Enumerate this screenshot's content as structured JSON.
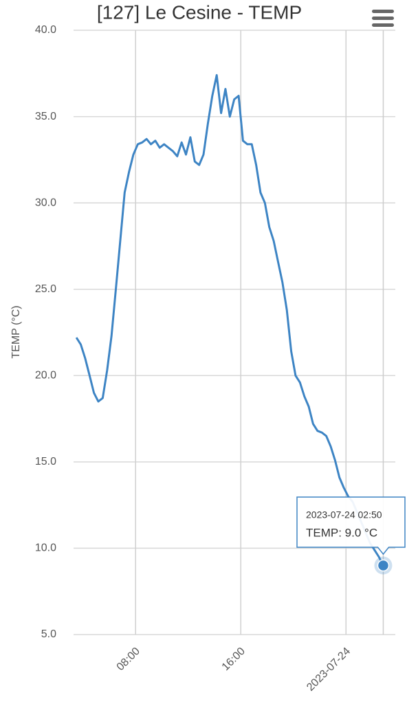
{
  "chart_data": {
    "type": "line",
    "title": "[127] Le Cesine - TEMP",
    "y_label": "TEMP (°C)",
    "x": [
      "03:30",
      "03:50",
      "04:10",
      "04:30",
      "04:50",
      "05:10",
      "05:30",
      "05:50",
      "06:10",
      "06:30",
      "06:50",
      "07:10",
      "07:30",
      "07:50",
      "08:10",
      "08:30",
      "08:50",
      "09:10",
      "09:30",
      "09:50",
      "10:10",
      "10:30",
      "10:50",
      "11:10",
      "11:30",
      "11:50",
      "12:10",
      "12:30",
      "12:50",
      "13:10",
      "13:30",
      "13:50",
      "14:10",
      "14:30",
      "14:50",
      "15:10",
      "15:30",
      "15:50",
      "16:10",
      "16:30",
      "16:50",
      "17:10",
      "17:30",
      "17:50",
      "18:10",
      "18:30",
      "18:50",
      "19:10",
      "19:30",
      "19:50",
      "20:10",
      "20:30",
      "20:50",
      "21:10",
      "21:30",
      "21:50",
      "22:10",
      "22:30",
      "22:50",
      "23:10",
      "23:30",
      "23:50",
      "00:10",
      "00:30",
      "00:50",
      "01:10",
      "01:30",
      "01:50",
      "02:10",
      "02:30",
      "02:50"
    ],
    "series": [
      {
        "name": "TEMP",
        "color": "#3d84c4",
        "values": [
          22.2,
          21.8,
          21.0,
          20.0,
          19.0,
          18.5,
          18.7,
          20.3,
          22.3,
          25.0,
          27.8,
          30.6,
          31.8,
          32.8,
          33.4,
          33.5,
          33.7,
          33.4,
          33.6,
          33.2,
          33.4,
          33.2,
          33.0,
          32.7,
          33.5,
          32.8,
          33.8,
          32.4,
          32.2,
          32.8,
          34.6,
          36.2,
          37.4,
          35.2,
          36.6,
          35.0,
          36.0,
          36.2,
          33.6,
          33.4,
          33.4,
          32.2,
          30.6,
          30.0,
          28.6,
          27.8,
          26.6,
          25.4,
          23.8,
          21.4,
          20.0,
          19.6,
          18.8,
          18.2,
          17.2,
          16.8,
          16.7,
          16.5,
          15.9,
          15.1,
          14.1,
          13.5,
          13.0,
          12.7,
          12.1,
          11.5,
          10.9,
          10.3,
          9.9,
          9.5,
          9.0
        ]
      }
    ],
    "xlim": [
      "03:17",
      "03:45"
    ],
    "xticks": [
      "08:00",
      "16:00",
      {
        "value": "00:00",
        "label": "2023-07-24"
      }
    ],
    "ylim": [
      5,
      40
    ],
    "yticks": [
      {
        "value": 5,
        "label": "5.0"
      },
      {
        "value": 10,
        "label": "10.0"
      },
      {
        "value": 15,
        "label": "15.0"
      },
      {
        "value": 20,
        "label": "20.0"
      },
      {
        "value": 25,
        "label": "25.0"
      },
      {
        "value": 30,
        "label": "30.0"
      },
      {
        "value": 35,
        "label": "35.0"
      },
      {
        "value": 40,
        "label": "40.0"
      }
    ],
    "grid": true,
    "tooltip": {
      "title": "2023-07-24 02:50",
      "text": "TEMP: 9.0 °C"
    }
  }
}
